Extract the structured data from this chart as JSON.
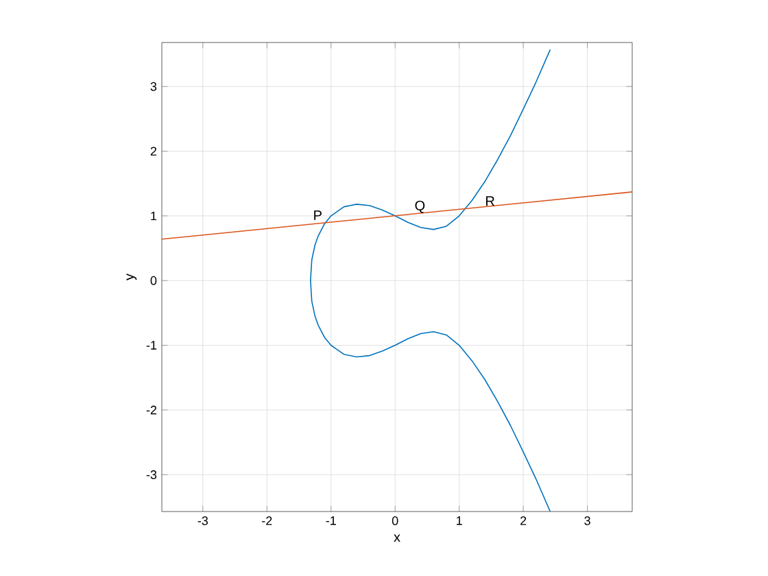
{
  "chart_data": {
    "type": "line",
    "xlabel": "x",
    "ylabel": "y",
    "xlim": [
      -3.64,
      3.7
    ],
    "ylim": [
      -3.57,
      3.68
    ],
    "xticks": [
      -3,
      -2,
      -1,
      0,
      1,
      2,
      3
    ],
    "yticks": [
      -3,
      -2,
      -1,
      0,
      1,
      2,
      3
    ],
    "grid": true,
    "marker": "none",
    "line_style": "solid",
    "series": [
      {
        "color": "#0072bd",
        "x": [
          2.42,
          2.2,
          2.0,
          1.8,
          1.6,
          1.4,
          1.2,
          1.0,
          0.8,
          0.6,
          0.4,
          0.2,
          0,
          -0.2,
          -0.4,
          -0.6,
          -0.8,
          -1.0,
          -1.1,
          -1.2,
          -1.25,
          -1.3,
          -1.32,
          -1.3,
          -1.25,
          -1.2,
          -1.1,
          -1.0,
          -0.8,
          -0.6,
          -0.4,
          -0.2,
          0,
          0.2,
          0.4,
          0.6,
          0.8,
          1.0,
          1.2,
          1.4,
          1.6,
          1.8,
          2.0,
          2.2,
          2.42
        ],
        "values": [
          -3.57,
          -3.07,
          -2.65,
          -2.24,
          -1.87,
          -1.53,
          -1.24,
          -1.0,
          -0.84,
          -0.79,
          -0.82,
          -0.9,
          -1.0,
          -1.09,
          -1.16,
          -1.18,
          -1.14,
          -1.0,
          -0.88,
          -0.69,
          -0.55,
          -0.32,
          0,
          0.32,
          0.55,
          0.69,
          0.88,
          1.0,
          1.14,
          1.18,
          1.16,
          1.09,
          1.0,
          0.9,
          0.82,
          0.79,
          0.84,
          1.0,
          1.24,
          1.53,
          1.87,
          2.24,
          2.65,
          3.07,
          3.57
        ]
      },
      {
        "color": "#d95319",
        "x": [
          -3.64,
          3.7
        ],
        "values": [
          0.64,
          1.37
        ]
      }
    ],
    "annotations": [
      {
        "text": "P",
        "x": -1.09,
        "y": 0.89
      },
      {
        "text": "Q",
        "x": 0,
        "y": 1
      },
      {
        "text": "R",
        "x": 1.1,
        "y": 1.11
      }
    ]
  }
}
